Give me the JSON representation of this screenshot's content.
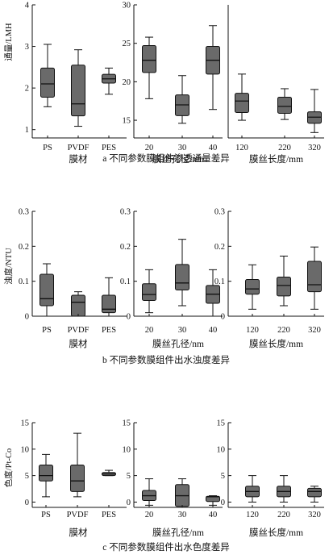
{
  "chart_data": [
    {
      "type": "boxplot",
      "caption": "a 不同参数膜组件渗透通量差异",
      "ylabel": "通量/LMH",
      "panels": [
        {
          "xlabel": "膜材",
          "ylim": [
            0.8,
            4
          ],
          "yticks": [
            "1",
            "2",
            "3",
            "4"
          ],
          "categories": [
            "PS",
            "PVDF",
            "PES"
          ],
          "boxes": [
            {
              "min": 1.55,
              "q1": 1.78,
              "median": 2.1,
              "q3": 2.48,
              "max": 3.05
            },
            {
              "min": 1.08,
              "q1": 1.33,
              "median": 1.62,
              "q3": 2.55,
              "max": 2.92
            },
            {
              "min": 1.85,
              "q1": 2.12,
              "median": 2.22,
              "q3": 2.33,
              "max": 2.48
            }
          ]
        },
        {
          "xlabel": "膜丝孔径/nm",
          "ylim": [
            12.7,
            30
          ],
          "yticks": [
            "15",
            "20",
            "25",
            "30"
          ],
          "categories": [
            "20",
            "30",
            "40"
          ],
          "boxes": [
            {
              "min": 17.8,
              "q1": 21.2,
              "median": 22.8,
              "q3": 24.7,
              "max": 25.8
            },
            {
              "min": 14.6,
              "q1": 15.6,
              "median": 17.0,
              "q3": 18.3,
              "max": 20.8
            },
            {
              "min": 16.4,
              "q1": 21.0,
              "median": 22.8,
              "q3": 24.6,
              "max": 27.3
            }
          ]
        },
        {
          "xlabel": "膜丝长度/mm",
          "ylim": [
            12.7,
            30
          ],
          "yticks": [],
          "categories": [
            "120",
            "220",
            "320"
          ],
          "boxes": [
            {
              "min": 15.0,
              "q1": 16.0,
              "median": 17.5,
              "q3": 18.5,
              "max": 21.0
            },
            {
              "min": 15.1,
              "q1": 15.9,
              "median": 16.8,
              "q3": 18.0,
              "max": 19.1
            },
            {
              "min": 13.4,
              "q1": 14.6,
              "median": 15.4,
              "q3": 16.1,
              "max": 19.0
            }
          ]
        }
      ]
    },
    {
      "type": "boxplot",
      "caption": "b 不同参数膜组件出水浊度差异",
      "ylabel": "浊度/NTU",
      "ylim": [
        0,
        0.3
      ],
      "yticks": [
        "0",
        "0.1",
        "0.2",
        "0.3"
      ],
      "panels": [
        {
          "xlabel": "膜材",
          "categories": [
            "PS",
            "PVDF",
            "PES"
          ],
          "boxes": [
            {
              "min": 0.0,
              "q1": 0.03,
              "median": 0.05,
              "q3": 0.12,
              "max": 0.15
            },
            {
              "min": 0.0,
              "q1": 0.0,
              "median": 0.04,
              "q3": 0.06,
              "max": 0.07
            },
            {
              "min": 0.0,
              "q1": 0.01,
              "median": 0.02,
              "q3": 0.06,
              "max": 0.11
            }
          ]
        },
        {
          "xlabel": "膜丝孔径/nm",
          "categories": [
            "20",
            "30",
            "40"
          ],
          "boxes": [
            {
              "min": 0.01,
              "q1": 0.045,
              "median": 0.062,
              "q3": 0.093,
              "max": 0.133
            },
            {
              "min": 0.03,
              "q1": 0.075,
              "median": 0.095,
              "q3": 0.148,
              "max": 0.22
            },
            {
              "min": 0.0,
              "q1": 0.037,
              "median": 0.063,
              "q3": 0.088,
              "max": 0.133
            }
          ]
        },
        {
          "xlabel": "膜丝长度/mm",
          "categories": [
            "120",
            "220",
            "320"
          ],
          "boxes": [
            {
              "min": 0.02,
              "q1": 0.063,
              "median": 0.078,
              "q3": 0.105,
              "max": 0.147
            },
            {
              "min": 0.03,
              "q1": 0.058,
              "median": 0.088,
              "q3": 0.112,
              "max": 0.172
            },
            {
              "min": 0.02,
              "q1": 0.07,
              "median": 0.09,
              "q3": 0.157,
              "max": 0.198
            }
          ]
        }
      ]
    },
    {
      "type": "boxplot",
      "caption": "c 不同参数膜组件出水色度差异",
      "ylabel": "色度/Pt-Co",
      "ylim": [
        -1,
        15
      ],
      "yticks": [
        "0",
        "5",
        "10",
        "15"
      ],
      "panels": [
        {
          "xlabel": "膜材",
          "categories": [
            "PS",
            "PVDF",
            "PES"
          ],
          "boxes": [
            {
              "min": 1.0,
              "q1": 4.0,
              "median": 5.0,
              "q3": 7.0,
              "max": 9.0
            },
            {
              "min": 1.0,
              "q1": 2.0,
              "median": 4.0,
              "q3": 7.0,
              "max": 13.0
            },
            {
              "min": 5.0,
              "q1": 5.0,
              "median": 5.3,
              "q3": 5.6,
              "max": 6.0
            }
          ]
        },
        {
          "xlabel": "膜丝孔径/nm",
          "categories": [
            "20",
            "30",
            "40"
          ],
          "boxes": [
            {
              "min": -0.6,
              "q1": 0.3,
              "median": 1.2,
              "q3": 2.2,
              "max": 4.4
            },
            {
              "min": -1.0,
              "q1": -0.8,
              "median": 1.2,
              "q3": 3.3,
              "max": 4.4
            },
            {
              "min": -0.6,
              "q1": 0.1,
              "median": 1.0,
              "q3": 1.1,
              "max": 1.2
            }
          ]
        },
        {
          "xlabel": "膜丝长度/mm",
          "categories": [
            "120",
            "220",
            "320"
          ],
          "boxes": [
            {
              "min": 0.0,
              "q1": 1.0,
              "median": 2.0,
              "q3": 3.0,
              "max": 5.0
            },
            {
              "min": 0.0,
              "q1": 1.0,
              "median": 2.0,
              "q3": 3.0,
              "max": 5.0
            },
            {
              "min": 0.0,
              "q1": 1.0,
              "median": 2.0,
              "q3": 2.6,
              "max": 3.0
            }
          ]
        }
      ]
    }
  ]
}
